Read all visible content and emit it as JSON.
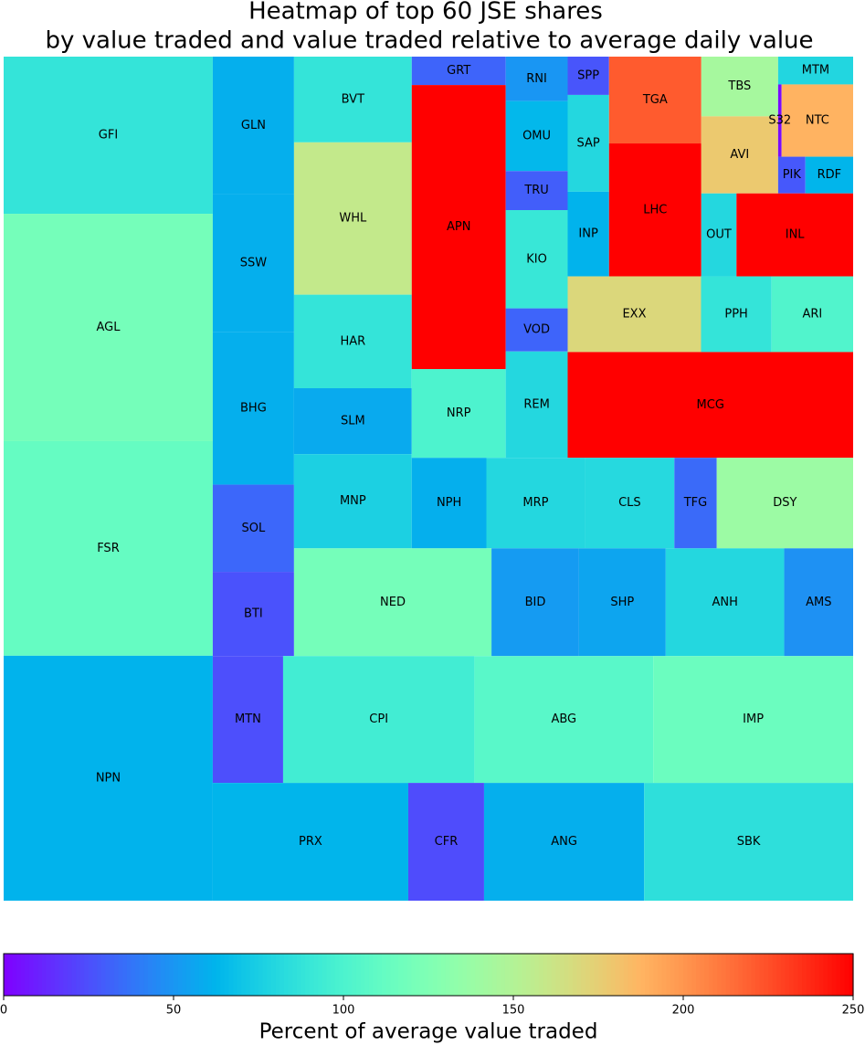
{
  "chart_data": {
    "type": "treemap",
    "title": [
      "Heatmap of top 60 JSE shares",
      "by value traded and value traded relative to average daily value"
    ],
    "labels": [
      "GFI",
      "AGL",
      "FSR",
      "NPN",
      "GLN",
      "SSW",
      "BHG",
      "SOL",
      "BTI",
      "MTN",
      "CPI",
      "ABG",
      "IMP",
      "PRX",
      "CFR",
      "ANG",
      "SBK",
      "BVT",
      "WHL",
      "HAR",
      "SLM",
      "MNP",
      "NED",
      "BID",
      "SHP",
      "ANH",
      "AMS",
      "NPH",
      "MRP",
      "CLS",
      "TFG",
      "DSY",
      "GRT",
      "APN",
      "NRP",
      "RNI",
      "OMU",
      "TRU",
      "KIO",
      "VOD",
      "REM",
      "MCG",
      "EXX",
      "PPH",
      "ARI",
      "SPP",
      "SAP",
      "INP",
      "TGA",
      "LHC",
      "OUT",
      "INL",
      "TBS",
      "AVI",
      "MTM",
      "S32",
      "NTC",
      "PIK",
      "RDF"
    ],
    "values": [
      394,
      570,
      538,
      614,
      134,
      134,
      149,
      85,
      82,
      107,
      291,
      272,
      304,
      276,
      107,
      226,
      295,
      121,
      215,
      132,
      93,
      133,
      255,
      113,
      112,
      153,
      89,
      81,
      107,
      97,
      46,
      148,
      32,
      320,
      100,
      33,
      52,
      29,
      73,
      32,
      79,
      362,
      121,
      64,
      74,
      19,
      48,
      42,
      96,
      147,
      35,
      116,
      55,
      71,
      25,
      3,
      62,
      12,
      21
    ],
    "color_values": [
      88,
      120,
      112,
      62,
      60,
      60,
      60,
      33,
      26,
      25,
      95,
      106,
      115,
      63,
      24,
      60,
      85,
      88,
      158,
      88,
      58,
      76,
      120,
      52,
      56,
      80,
      48,
      60,
      80,
      81,
      34,
      139,
      32,
      250,
      100,
      50,
      64,
      30,
      90,
      32,
      80,
      250,
      170,
      88,
      102,
      27,
      80,
      62,
      221,
      250,
      80,
      250,
      144,
      178,
      79,
      3,
      188,
      28,
      63
    ],
    "colormap": "rainbow",
    "colorbar": {
      "label": "Percent of average value traded",
      "lim": [
        0,
        250
      ],
      "ticks": [
        0,
        50,
        100,
        150,
        200,
        250
      ]
    }
  }
}
